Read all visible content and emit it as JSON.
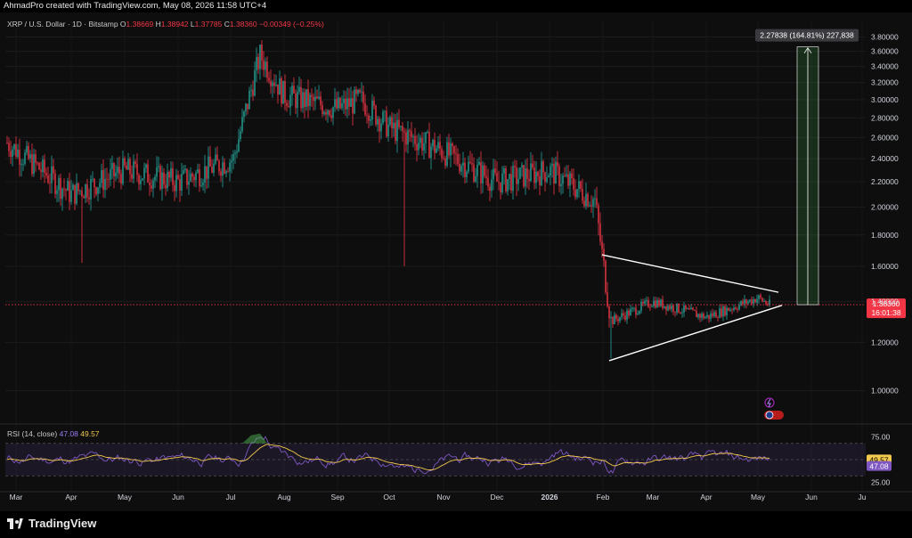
{
  "header": {
    "credit": "AhmadPro created with TradingView.com, May 08, 2026 11:58 UTC+4"
  },
  "legend": {
    "symbol": "XRP / U.S. Dollar · 1D · Bitstamp",
    "o_label": "O",
    "o": "1.38669",
    "h_label": "H",
    "h": "1.38942",
    "l_label": "L",
    "l": "1.37785",
    "c_label": "C",
    "c": "1.38360",
    "change": "−0.00349 (−0.25%)"
  },
  "measure": {
    "text": "2.27838 (164.81%) 227,838"
  },
  "price_label": {
    "price": "1.38360",
    "countdown": "16:01:38"
  },
  "rsi": {
    "label": "RSI (14, close)",
    "rsi_value": "47.08",
    "ma_value": "49.57"
  },
  "colors": {
    "up": "#26a69a",
    "down": "#f23645",
    "rsi": "#7e57c2",
    "rsi_ma": "#f2c94c",
    "accent_green": "#43a047"
  },
  "branding": {
    "logo_text": "TradingView"
  },
  "chart_data": [
    {
      "type": "line",
      "title": "XRP / U.S. Dollar · 1D · Bitstamp",
      "y_scale": "log",
      "ylim": [
        0.9,
        3.95
      ],
      "y_ticks": [
        "3.80000",
        "3.60000",
        "3.40000",
        "3.20000",
        "3.00000",
        "2.80000",
        "2.60000",
        "2.40000",
        "2.20000",
        "2.00000",
        "1.80000",
        "1.60000",
        "1.40000",
        "1.20000",
        "1.00000"
      ],
      "x_ticks": [
        "Mar",
        "Apr",
        "May",
        "Jun",
        "Jul",
        "Aug",
        "Sep",
        "Oct",
        "Nov",
        "Dec",
        "2026",
        "Feb",
        "Mar",
        "Apr",
        "May",
        "Jun",
        "Ju"
      ],
      "series": [
        {
          "x": [
            "Mar",
            "Apr",
            "May",
            "Jun",
            "Jul",
            "Jul",
            "Aug",
            "Sep",
            "Oct",
            "Oct",
            "Nov",
            "Dec",
            "2026",
            "Feb",
            "Feb",
            "Mar",
            "Apr",
            "May",
            "May"
          ],
          "values": [
            2.55,
            2.1,
            2.3,
            2.2,
            2.4,
            3.55,
            3.05,
            2.9,
            3.0,
            2.7,
            2.5,
            2.2,
            2.3,
            2.05,
            1.3,
            1.4,
            1.32,
            1.42,
            1.3836
          ]
        }
      ],
      "last_price": 1.3836,
      "measure_target": 3.66,
      "triangle_upper": [
        1.67,
        1.45
      ],
      "triangle_lower": [
        1.12,
        1.38
      ]
    },
    {
      "type": "line",
      "title": "RSI (14, close)",
      "ylim": [
        15,
        85
      ],
      "y_ticks": [
        "75.00",
        "25.00"
      ],
      "series": [
        {
          "name": "RSI",
          "last": 47.08
        },
        {
          "name": "MA",
          "last": 49.57
        }
      ]
    }
  ]
}
